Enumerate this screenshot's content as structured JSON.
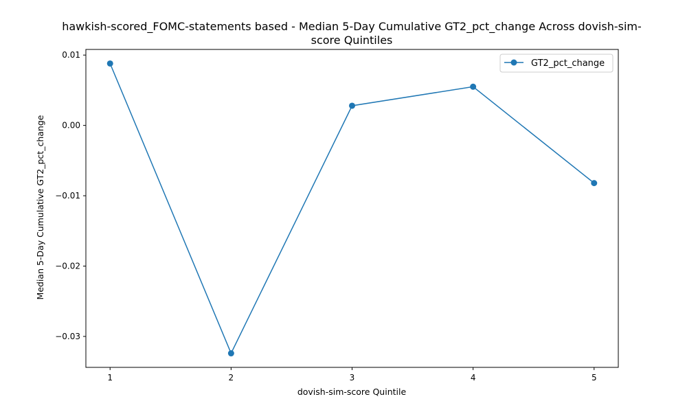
{
  "chart_data": {
    "type": "line",
    "title_lines": [
      "hawkish-scored_FOMC-statements based - Median 5-Day Cumulative GT2_pct_change Across dovish-sim-",
      "score Quintiles"
    ],
    "xlabel": "dovish-sim-score Quintile",
    "ylabel": "Median 5-Day Cumulative GT2_pct_change",
    "x": [
      1,
      2,
      3,
      4,
      5
    ],
    "x_ticks": [
      "1",
      "2",
      "3",
      "4",
      "5"
    ],
    "series": [
      {
        "name": "GT2_pct_change",
        "values": [
          0.0088,
          -0.0324,
          0.0028,
          0.0055,
          -0.0082
        ],
        "color": "#1f77b4"
      }
    ],
    "y_ticks": [
      0.01,
      0.0,
      -0.01,
      -0.02,
      -0.03
    ],
    "y_tick_labels": [
      "0.01",
      "0.00",
      "−0.01",
      "−0.02",
      "−0.03"
    ],
    "xlim": [
      0.8,
      5.2
    ],
    "ylim": [
      -0.0344,
      0.0108
    ],
    "grid": false,
    "legend_position": "top-right"
  }
}
